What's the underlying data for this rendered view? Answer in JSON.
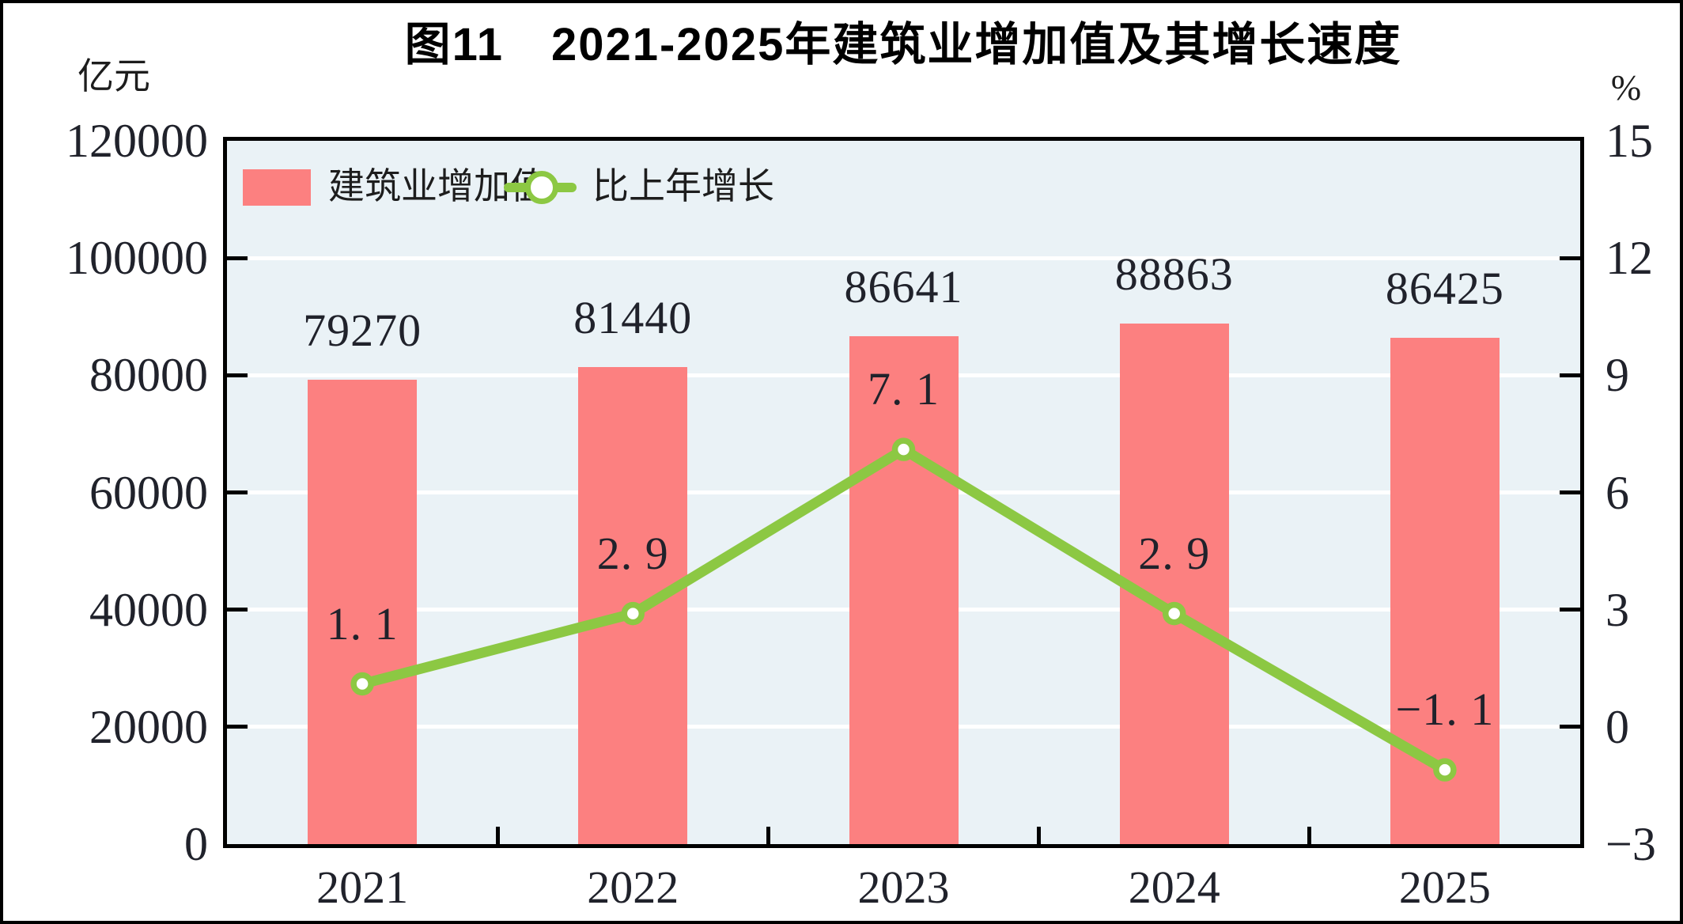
{
  "figure": {
    "title": "图11　2021-2025年建筑业增加值及其增长速度",
    "left_axis_unit": "亿元",
    "right_axis_unit": "%"
  },
  "legend": {
    "items": [
      {
        "label": "建筑业增加值",
        "marker": "bar-swatch",
        "color": "#fc8080"
      },
      {
        "label": "比上年增长",
        "marker": "line-with-dot",
        "color": "#8cc843"
      }
    ]
  },
  "chart_data": {
    "type": "bar+line combo",
    "categories": [
      "2021",
      "2022",
      "2023",
      "2024",
      "2025"
    ],
    "series": [
      {
        "name": "建筑业增加值",
        "type": "bar",
        "axis": "left",
        "unit": "亿元",
        "values": [
          79270,
          81440,
          86641,
          88863,
          86425
        ],
        "value_labels": [
          "79270",
          "81440",
          "86641",
          "88863",
          "86425"
        ],
        "color": "#fc8080"
      },
      {
        "name": "比上年增长",
        "type": "line",
        "axis": "right",
        "unit": "%",
        "values": [
          1.1,
          2.9,
          7.1,
          2.9,
          -1.1
        ],
        "value_labels": [
          "1. 1",
          "2. 9",
          "7. 1",
          "2. 9",
          "−1. 1"
        ],
        "color": "#8cc843",
        "marker": "circle-white-fill-green-ring"
      }
    ],
    "left_axis": {
      "min": 0,
      "max": 120000,
      "ticks": [
        0,
        20000,
        40000,
        60000,
        80000,
        100000,
        120000
      ],
      "tick_labels": [
        "0",
        "20000",
        "40000",
        "60000",
        "80000",
        "100000",
        "120000"
      ]
    },
    "right_axis": {
      "min": -3,
      "max": 15,
      "ticks": [
        -3,
        0,
        3,
        6,
        9,
        12,
        15
      ],
      "tick_labels": [
        "−3",
        "0",
        "3",
        "6",
        "9",
        "12",
        "15"
      ]
    },
    "grid": true,
    "grid_color": "#ffffff",
    "plot_bg": "#eaf2f6",
    "legend_position": "top-left-inside"
  }
}
